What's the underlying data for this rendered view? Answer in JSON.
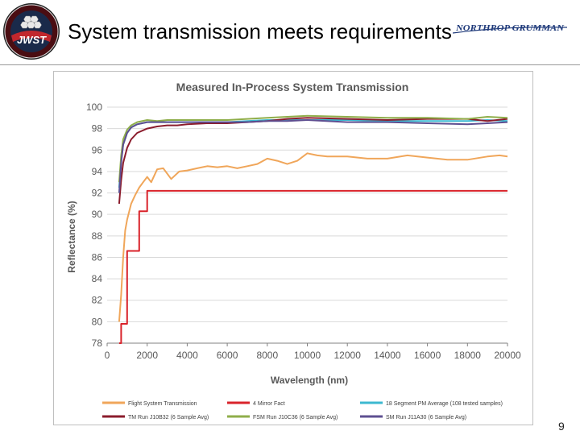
{
  "slide": {
    "title": "System transmission meets requirements",
    "page_number": "9",
    "logo_text": "JWST",
    "brand_text": "NORTHROP GRUMMAN"
  },
  "colors": {
    "flight_mirror": "#f0a65a",
    "four_mirror": "#d9232b",
    "eighteen_seg": "#3cb8d0",
    "tm": "#8b1c2c",
    "fsm": "#8fae4a",
    "sm": "#5e4f91",
    "grid": "#d9d9d9",
    "title": "#595959"
  },
  "chart_data": {
    "type": "line",
    "title": "Measured In-Process System Transmission",
    "xlabel": "Wavelength (nm)",
    "ylabel": "Reflectance (%)",
    "xlim": [
      0,
      20000
    ],
    "ylim": [
      78,
      100
    ],
    "x_ticks": [
      "0",
      "2000",
      "4000",
      "6000",
      "8000",
      "10000",
      "12000",
      "14000",
      "16000",
      "18000",
      "20000"
    ],
    "y_ticks": [
      "78",
      "80",
      "82",
      "84",
      "86",
      "88",
      "90",
      "92",
      "94",
      "96",
      "98",
      "100"
    ],
    "grid": "horizontal",
    "legend_position": "bottom",
    "series": [
      {
        "name": "Flight System Transmission",
        "color_key": "flight_mirror",
        "x": [
          600,
          700,
          800,
          900,
          1000,
          1200,
          1400,
          1600,
          1800,
          2000,
          2200,
          2500,
          2800,
          3200,
          3600,
          4000,
          4500,
          5000,
          5500,
          6000,
          6500,
          7000,
          7500,
          8000,
          8500,
          9000,
          9500,
          10000,
          10500,
          11000,
          12000,
          13000,
          14000,
          15000,
          16000,
          17000,
          18000,
          19000,
          19600,
          20000
        ],
        "y": [
          80.0,
          82.5,
          86.0,
          88.5,
          89.5,
          91.0,
          91.8,
          92.5,
          93.0,
          93.5,
          93.0,
          94.2,
          94.3,
          93.3,
          94.0,
          94.1,
          94.3,
          94.5,
          94.4,
          94.5,
          94.3,
          94.5,
          94.7,
          95.2,
          95.0,
          94.7,
          95.0,
          95.7,
          95.5,
          95.4,
          95.4,
          95.2,
          95.2,
          95.5,
          95.3,
          95.1,
          95.1,
          95.4,
          95.5,
          95.4
        ]
      },
      {
        "name": "4 Mirror Fact",
        "color_key": "four_mirror",
        "step": true,
        "x": [
          600,
          700,
          1000,
          1600,
          2000,
          20000
        ],
        "y": [
          78.0,
          79.8,
          86.6,
          90.3,
          92.2,
          92.2
        ]
      },
      {
        "name": "18 Segment PM Average (108 tested samples)",
        "color_key": "eighteen_seg",
        "x": [
          600,
          700,
          800,
          1000,
          1200,
          1500,
          2000,
          2500,
          3000,
          4000,
          5000,
          6000,
          7000,
          8000,
          9000,
          10000,
          12000,
          14000,
          16000,
          18000,
          19000,
          20000
        ],
        "y": [
          92.5,
          95.0,
          96.5,
          97.6,
          98.1,
          98.4,
          98.6,
          98.6,
          98.6,
          98.6,
          98.6,
          98.6,
          98.7,
          98.8,
          98.8,
          98.8,
          98.8,
          98.7,
          98.7,
          98.7,
          98.8,
          98.7
        ]
      },
      {
        "name": "TM Run J10B32 (6 Sample Avg)",
        "color_key": "tm",
        "x": [
          600,
          700,
          800,
          1000,
          1200,
          1500,
          2000,
          2500,
          3000,
          3500,
          4000,
          5000,
          6000,
          7000,
          8000,
          9000,
          10000,
          12000,
          14000,
          16000,
          18000,
          19000,
          20000
        ],
        "y": [
          91.0,
          93.2,
          94.8,
          96.2,
          97.0,
          97.6,
          98.0,
          98.2,
          98.3,
          98.3,
          98.4,
          98.5,
          98.5,
          98.6,
          98.7,
          98.9,
          99.0,
          98.9,
          98.8,
          98.9,
          98.9,
          98.7,
          98.9
        ]
      },
      {
        "name": "FSM Run J10C36 (6 Sample Avg)",
        "color_key": "fsm",
        "x": [
          600,
          700,
          800,
          1000,
          1200,
          1500,
          2000,
          2500,
          3000,
          4000,
          5000,
          6000,
          7000,
          8000,
          9000,
          10000,
          12000,
          14000,
          16000,
          18000,
          19000,
          20000
        ],
        "y": [
          93.0,
          95.5,
          97.0,
          97.9,
          98.3,
          98.6,
          98.8,
          98.7,
          98.8,
          98.8,
          98.8,
          98.8,
          98.9,
          99.0,
          99.1,
          99.2,
          99.1,
          99.0,
          99.0,
          98.9,
          99.1,
          99.0
        ]
      },
      {
        "name": "SM Run J11A30 (6 Sample Avg)",
        "color_key": "sm",
        "x": [
          600,
          700,
          800,
          1000,
          1200,
          1500,
          2000,
          2500,
          3000,
          4000,
          5000,
          6000,
          7000,
          8000,
          9000,
          10000,
          12000,
          14000,
          16000,
          18000,
          19000,
          20000
        ],
        "y": [
          92.0,
          94.8,
          96.5,
          97.6,
          98.1,
          98.4,
          98.6,
          98.6,
          98.6,
          98.6,
          98.6,
          98.6,
          98.6,
          98.7,
          98.7,
          98.8,
          98.6,
          98.6,
          98.5,
          98.4,
          98.5,
          98.6
        ]
      }
    ]
  }
}
